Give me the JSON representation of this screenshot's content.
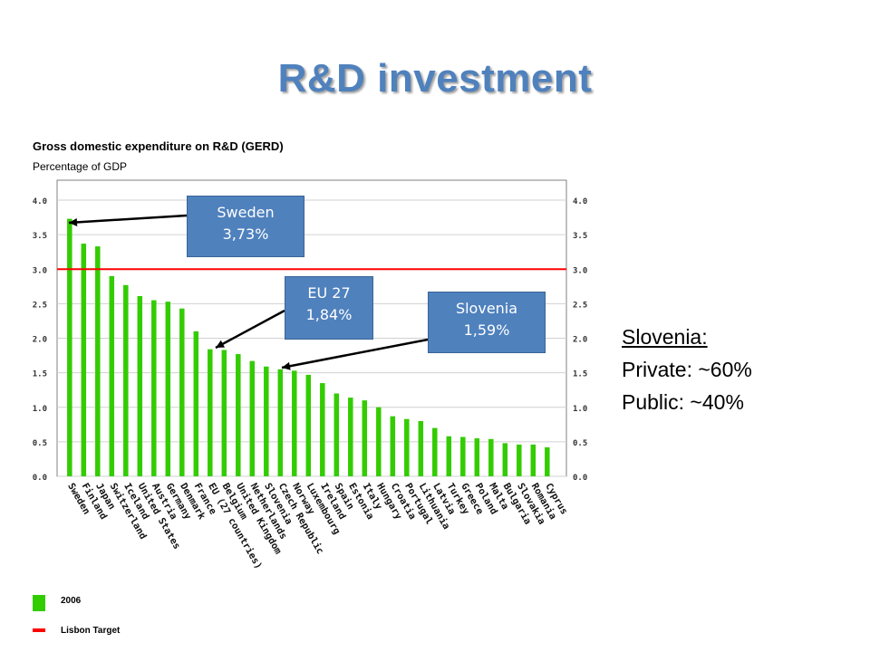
{
  "slide": {
    "title": "R&D investment"
  },
  "callouts": {
    "sweden": {
      "line1": "Sweden",
      "line2": "3,73%"
    },
    "eu27": {
      "line1": "EU 27",
      "line2": "1,84%"
    },
    "slovenia": {
      "line1": "Slovenia",
      "line2": "1,59%"
    }
  },
  "side_note": {
    "heading": "Slovenia:",
    "private": "Private: ~60%",
    "public": "Public: ~40%"
  },
  "colors": {
    "bar": "#33cc00",
    "target_line": "#ff0000",
    "callout_fill": "#4f81bd",
    "title": "#4f81bd"
  },
  "chart_data": {
    "type": "bar",
    "title": "Gross domestic expenditure on R&D (GERD)",
    "subtitle": "Percentage of GDP",
    "ylim": [
      0,
      4.0
    ],
    "yticks": [
      "0.0",
      "0.5",
      "1.0",
      "1.5",
      "2.0",
      "2.5",
      "3.0",
      "3.5",
      "4.0"
    ],
    "grid": true,
    "categories": [
      "Sweden",
      "Finland",
      "Japan",
      "Switzerland",
      "Iceland",
      "United States",
      "Austria",
      "Germany",
      "Denmark",
      "France",
      "EU (27 countries)",
      "Belgium",
      "United Kingdom",
      "Netherlands",
      "Slovenia",
      "Czech Republic",
      "Norway",
      "Luxembourg",
      "Ireland",
      "Spain",
      "Estonia",
      "Italy",
      "Hungary",
      "Croatia",
      "Portugal",
      "Lithuania",
      "Latvia",
      "Turkey",
      "Greece",
      "Poland",
      "Malta",
      "Bulgaria",
      "Slovakia",
      "Romania",
      "Cyprus"
    ],
    "series": [
      {
        "name": "2006",
        "values": [
          3.73,
          3.37,
          3.33,
          2.9,
          2.77,
          2.61,
          2.55,
          2.53,
          2.43,
          2.1,
          1.84,
          1.83,
          1.77,
          1.67,
          1.59,
          1.55,
          1.53,
          1.47,
          1.35,
          1.2,
          1.14,
          1.1,
          1.0,
          0.87,
          0.83,
          0.8,
          0.7,
          0.58,
          0.57,
          0.55,
          0.54,
          0.48,
          0.46,
          0.46,
          0.42
        ]
      }
    ],
    "target": {
      "name": "Lisbon Target",
      "value": 3.0
    },
    "legend": {
      "position": "bottom-left",
      "items": [
        {
          "label": "2006",
          "kind": "bar"
        },
        {
          "label": "Lisbon Target",
          "kind": "line"
        }
      ]
    }
  }
}
